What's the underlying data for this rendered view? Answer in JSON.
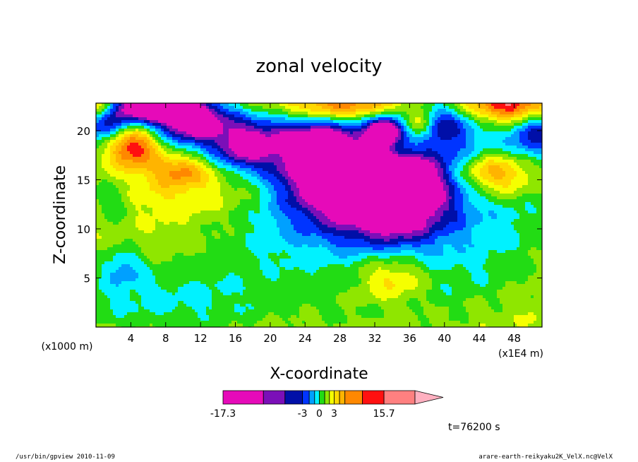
{
  "chart_data": {
    "type": "heatmap",
    "title": "zonal velocity",
    "xlabel": "X-coordinate",
    "ylabel": "Z-coordinate",
    "x_unit": "(x1E4 m)",
    "y_unit": "(x1000 m)",
    "x_ticks": [
      "4",
      "8",
      "12",
      "16",
      "20",
      "24",
      "28",
      "32",
      "36",
      "40",
      "44",
      "48"
    ],
    "x_tick_values": [
      4,
      8,
      12,
      16,
      20,
      24,
      28,
      32,
      36,
      40,
      44,
      48
    ],
    "y_ticks": [
      "5",
      "10",
      "15",
      "20"
    ],
    "y_tick_values": [
      5,
      10,
      15,
      20
    ],
    "xlim": [
      0,
      51.2
    ],
    "ylim": [
      0,
      22.8
    ],
    "time_label": "t=76200 s",
    "colorbar": {
      "labels": [
        {
          "text": "-17.3",
          "value": -17.3
        },
        {
          "text": "-3",
          "value": -3
        },
        {
          "text": "0",
          "value": 0
        },
        {
          "text": "3",
          "value": 3
        },
        {
          "text": "15.7",
          "value": 15.7
        }
      ],
      "bins": [
        {
          "color": "#e60ab9",
          "weight": 3
        },
        {
          "color": "#7b0fb8",
          "weight": 1.6
        },
        {
          "color": "#000fa8",
          "weight": 1.3
        },
        {
          "color": "#0034ff",
          "weight": 0.5
        },
        {
          "color": "#00a0ff",
          "weight": 0.4
        },
        {
          "color": "#00f2ff",
          "weight": 0.35
        },
        {
          "color": "#22dc14",
          "weight": 0.4
        },
        {
          "color": "#8fe600",
          "weight": 0.35
        },
        {
          "color": "#f5ff00",
          "weight": 0.35
        },
        {
          "color": "#ffd800",
          "weight": 0.4
        },
        {
          "color": "#ffb400",
          "weight": 0.4
        },
        {
          "color": "#ff8800",
          "weight": 1.3
        },
        {
          "color": "#ff1010",
          "weight": 1.6
        },
        {
          "color": "#ff8080",
          "weight": 2.3
        }
      ],
      "overflow_color": "#ffb0c0"
    },
    "features": [
      {
        "type": "background",
        "level": 1.5
      },
      {
        "x": 20,
        "y": 18,
        "sx": 24,
        "sy": 3,
        "amp": -2.4
      },
      {
        "x": 9,
        "y": 4,
        "sx": 9,
        "sy": 2.4,
        "amp": -1.4
      },
      {
        "x": 36,
        "y": 3,
        "sx": 7,
        "sy": 2.5,
        "amp": -1.2
      },
      {
        "x": 20,
        "y": 8,
        "sx": 6,
        "sy": 3,
        "amp": -1.0
      },
      {
        "x": 49,
        "y": 11,
        "sx": 3,
        "sy": 3,
        "amp": -1.1
      },
      {
        "x": 44,
        "y": 6,
        "sx": 5,
        "sy": 2.5,
        "amp": -1.0
      },
      {
        "x": 12,
        "y": 15,
        "sx": 8,
        "sy": 2.4,
        "amp": 2.6
      },
      {
        "x": 5,
        "y": 18,
        "sx": 3,
        "sy": 2,
        "amp": 2.5
      },
      {
        "x": 2,
        "y": 13,
        "sx": 1.8,
        "sy": 1.8,
        "amp": -2.0
      },
      {
        "x": 3,
        "y": 6,
        "sx": 1.8,
        "sy": 1.5,
        "amp": -2.6
      },
      {
        "x": 34,
        "y": 5,
        "sx": 3,
        "sy": 1.8,
        "amp": 3.2
      },
      {
        "x": 46,
        "y": 15,
        "sx": 3.5,
        "sy": 1.8,
        "amp": 3.2
      },
      {
        "x": 32,
        "y": 14,
        "sx": 10,
        "sy": 4.5,
        "amp": -5.0
      },
      {
        "x": 34,
        "y": 13,
        "sx": 6,
        "sy": 4,
        "amp": -4.0
      },
      {
        "x": 34,
        "y": 14.5,
        "sx": 3,
        "sy": 2.8,
        "amp": -6.5
      },
      {
        "x": 34,
        "y": 14.8,
        "sx": 0.8,
        "sy": 0.7,
        "amp": -6.0
      },
      {
        "x": 26,
        "y": 16.5,
        "sx": 3.5,
        "sy": 3,
        "amp": -5.5
      },
      {
        "x": 17,
        "y": 18,
        "sx": 2,
        "sy": 1.5,
        "amp": -4.0
      },
      {
        "x": 19,
        "y": 20,
        "sx": 8,
        "sy": 2,
        "amp": -3.0
      },
      {
        "x": 11,
        "y": 21,
        "sx": 2.8,
        "sy": 1.5,
        "amp": -5.5
      },
      {
        "x": 6,
        "y": 22.5,
        "sx": 4,
        "sy": 1.2,
        "amp": -9.0
      },
      {
        "x": 1,
        "y": 20.5,
        "sx": 1.8,
        "sy": 1.4,
        "amp": -4.0
      },
      {
        "x": 50.5,
        "y": 20,
        "sx": 2,
        "sy": 1.8,
        "amp": -4.5
      },
      {
        "x": 39,
        "y": 21,
        "sx": 3,
        "sy": 1.6,
        "amp": -4.0
      },
      {
        "x": 33,
        "y": 20,
        "sx": 1.4,
        "sy": 1,
        "amp": -7.0
      },
      {
        "x": 34,
        "y": 18,
        "sx": 3.5,
        "sy": 1.4,
        "amp": 5.0
      },
      {
        "x": 28,
        "y": 22.5,
        "sx": 6,
        "sy": 1.5,
        "amp": 6.0
      },
      {
        "x": 48,
        "y": 22.5,
        "sx": 4,
        "sy": 1.2,
        "amp": 6.0
      },
      {
        "x": 0.5,
        "y": 22.5,
        "sx": 1.5,
        "sy": 1,
        "amp": 5.5
      },
      {
        "x": 37,
        "y": 20.5,
        "sx": 1.3,
        "sy": 1.1,
        "amp": 5.5
      },
      {
        "x": 4,
        "y": 18.5,
        "sx": 2,
        "sy": 1.3,
        "amp": 4.5
      },
      {
        "x": 10,
        "y": 16,
        "sx": 1.8,
        "sy": 1,
        "amp": 3.2
      },
      {
        "x": 45,
        "y": 16,
        "sx": 3,
        "sy": 1.2,
        "amp": 3.0
      },
      {
        "x": 8,
        "y": 1.5,
        "sx": 12,
        "sy": 2,
        "amp": -1.2
      }
    ]
  },
  "footer": {
    "left": "/usr/bin/gpview   2010-11-09",
    "right": "arare-earth-reikyaku2K_VelX.nc@VelX"
  }
}
